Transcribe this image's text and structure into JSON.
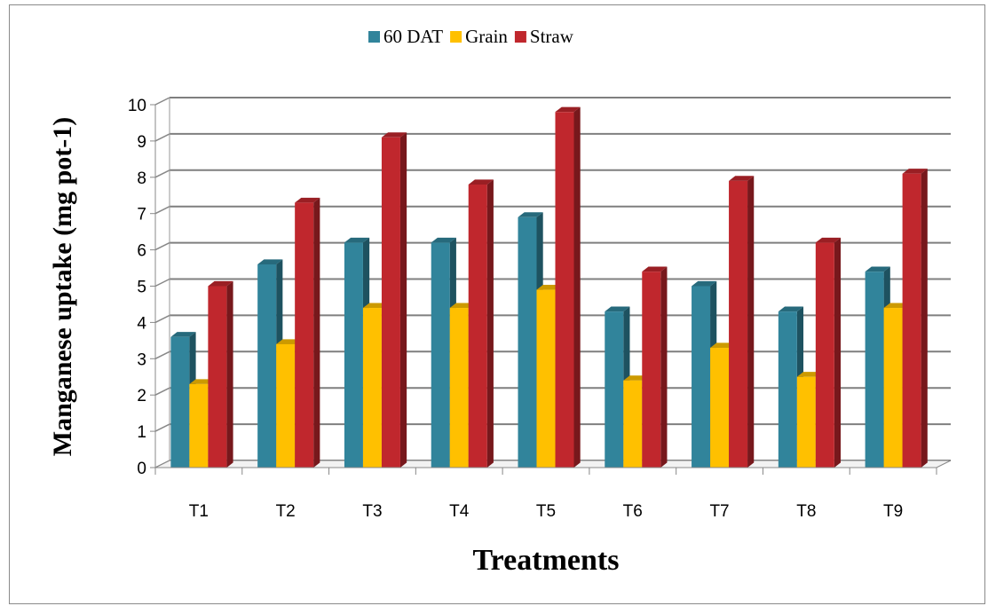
{
  "chart_data": {
    "type": "bar",
    "xlabel": "Treatments",
    "ylabel": "Manganese uptake (mg pot-1)",
    "ylim": [
      0,
      10
    ],
    "yticks": [
      0,
      1,
      2,
      3,
      4,
      5,
      6,
      7,
      8,
      9,
      10
    ],
    "grid": true,
    "legend_position": "top",
    "categories": [
      "T1",
      "T2",
      "T3",
      "T4",
      "T5",
      "T6",
      "T7",
      "T8",
      "T9"
    ],
    "series": [
      {
        "name": "60 DAT",
        "color": "#31849B",
        "values": [
          3.6,
          5.6,
          6.2,
          6.2,
          6.9,
          4.3,
          5.0,
          4.3,
          5.4
        ]
      },
      {
        "name": "Grain",
        "color": "#FFC000",
        "values": [
          2.3,
          3.4,
          4.4,
          4.4,
          4.9,
          2.4,
          3.3,
          2.5,
          4.4
        ]
      },
      {
        "name": "Straw",
        "color": "#C0272D",
        "values": [
          5.0,
          7.3,
          9.1,
          7.8,
          9.8,
          5.4,
          7.9,
          6.2,
          8.1
        ]
      }
    ]
  }
}
